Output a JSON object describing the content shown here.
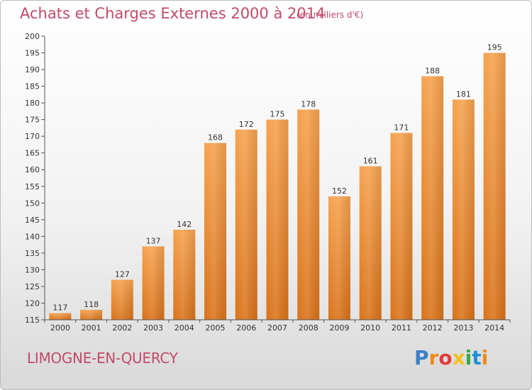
{
  "title": "Achats et Charges Externes 2000 à 2014",
  "subtitle": "(en milliers d'€)",
  "commune": "LIMOGNE-EN-QUERCY",
  "brand": {
    "text": "Proxiti",
    "colors": [
      "#3a7fc4",
      "#f08c1a",
      "#e23b3b",
      "#f2c21b",
      "#3aa845",
      "#1e90d6",
      "#f08c1a"
    ]
  },
  "chart_data": {
    "type": "bar",
    "categories": [
      "2000",
      "2001",
      "2002",
      "2003",
      "2004",
      "2005",
      "2006",
      "2007",
      "2008",
      "2009",
      "2010",
      "2011",
      "2012",
      "2013",
      "2014"
    ],
    "values": [
      117,
      118,
      127,
      137,
      142,
      168,
      172,
      175,
      178,
      152,
      161,
      171,
      188,
      181,
      195
    ],
    "ylim": [
      115,
      200
    ],
    "yticks": [
      115,
      120,
      125,
      130,
      135,
      140,
      145,
      150,
      155,
      160,
      165,
      170,
      175,
      180,
      185,
      190,
      195,
      200
    ],
    "grid": false,
    "bar_color": "#f0913c",
    "axis_color": "#555555"
  }
}
